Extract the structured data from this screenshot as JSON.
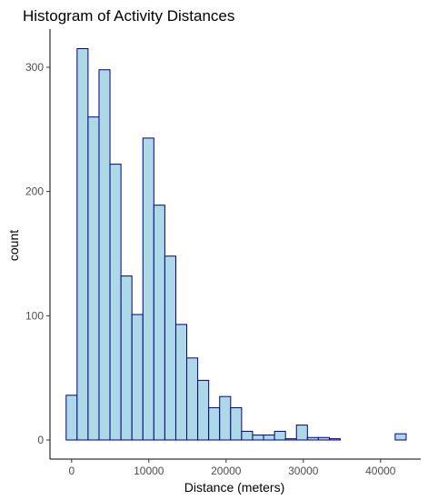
{
  "chart_data": {
    "type": "bar",
    "title": "Histogram of Activity Distances",
    "xlabel": "Distance (meters)",
    "ylabel": "count",
    "xlim": [
      -2800,
      45200
    ],
    "ylim": [
      0,
      330
    ],
    "bin_width": 1420,
    "bin_centers": [
      0,
      1420,
      2840,
      4260,
      5680,
      7100,
      8520,
      9940,
      11360,
      12780,
      14200,
      15620,
      17040,
      18460,
      19880,
      21300,
      22720,
      24140,
      25560,
      26980,
      28400,
      29820,
      31240,
      32660,
      34080,
      35500,
      36920,
      38340,
      39760,
      41180,
      42600
    ],
    "values": [
      36,
      315,
      260,
      298,
      222,
      132,
      101,
      243,
      189,
      148,
      93,
      66,
      48,
      26,
      35,
      26,
      7,
      4,
      4,
      7,
      1,
      12,
      2,
      2,
      1,
      0,
      0,
      0,
      0,
      0,
      5
    ],
    "x_ticks": [
      0,
      10000,
      20000,
      30000,
      40000
    ],
    "y_ticks": [
      0,
      100,
      200,
      300
    ],
    "grid": false,
    "colors": {
      "fill": "#add8e6",
      "border": "#00008b"
    }
  }
}
